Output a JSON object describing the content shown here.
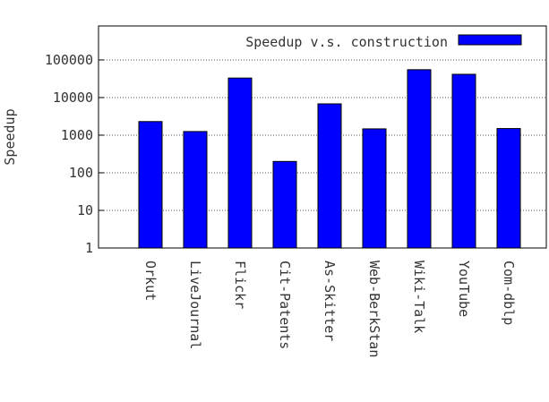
{
  "chart_data": {
    "type": "bar",
    "ylabel": "Speedup",
    "log_scale": true,
    "grid": true,
    "legend": "upper right",
    "categories": [
      "Orkut",
      "LiveJournal",
      "Flickr",
      "Cit-Patents",
      "As-Skitter",
      "Web-BerkStan",
      "Wiki-Talk",
      "YouTube",
      "Com-dblp"
    ],
    "series": [
      {
        "name": "Speedup v.s. construction",
        "color": "#0000ff",
        "values": [
          2300,
          1250,
          33000,
          200,
          6800,
          1470,
          55000,
          41500,
          1500
        ]
      }
    ],
    "ylim": [
      1,
      800000
    ],
    "yticks": [
      1,
      10,
      100,
      1000,
      10000,
      100000
    ]
  }
}
